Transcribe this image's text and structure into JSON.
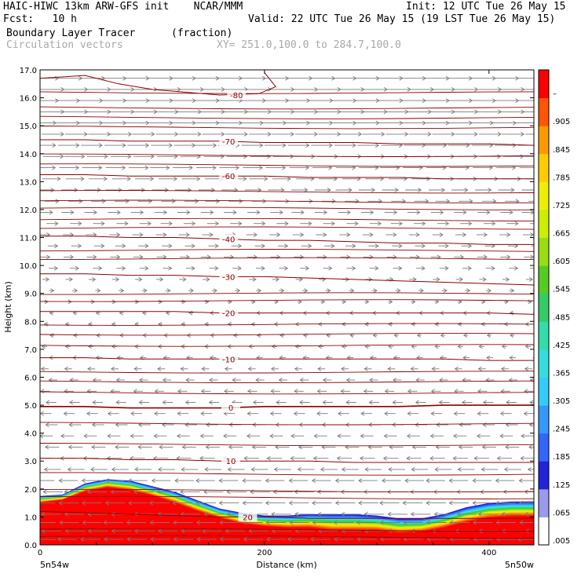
{
  "header": {
    "line1_left": "HAIC-HIWC 13km ARW-GFS init    NCAR/MMM",
    "line1_right": "Init: 12 UTC Tue 26 May 15",
    "line2_left": "Fcst:   10 h",
    "line2_right": "Valid: 22 UTC Tue 26 May 15 (19 LST Tue 26 May 15)",
    "line3_left": "Boundary Layer Tracer",
    "line3_unit": "(fraction)",
    "line4_left": "Circulation vectors",
    "line4_xy": "XY= 251.0,100.0 to 284.7,100.0"
  },
  "colors": {
    "contour": "#8b0000",
    "vector": "#7a7a7a",
    "tracer_scale": [
      "#ffffff",
      "#e8e8f8",
      "#2222dd",
      "#3366ff",
      "#33aaff",
      "#33ddee",
      "#33ddaa",
      "#33cc55",
      "#66dd22",
      "#bbee11",
      "#eeee00",
      "#ffcc00",
      "#ff9900",
      "#ff6600",
      "#ff3300",
      "#ff0000"
    ]
  },
  "chart_data": {
    "type": "heatmap",
    "title": "Boundary Layer Tracer",
    "units": "(fraction)",
    "xlabel": "Distance (km)",
    "ylabel": "Height (km)",
    "xlim": [
      0,
      440
    ],
    "ylim": [
      0.0,
      17.0
    ],
    "x_ticks": [
      {
        "value": 0,
        "label": "0"
      },
      {
        "value": 200,
        "label": "200"
      },
      {
        "value": 400,
        "label": "400"
      }
    ],
    "x_end_labels": {
      "left": "5n54w",
      "right": "5n50w"
    },
    "y_ticks": [
      {
        "value": 0.0,
        "label": "0.0"
      },
      {
        "value": 1.0,
        "label": "1.0"
      },
      {
        "value": 2.0,
        "label": "2.0"
      },
      {
        "value": 3.0,
        "label": "3.0"
      },
      {
        "value": 4.0,
        "label": "4.0"
      },
      {
        "value": 5.0,
        "label": "5.0"
      },
      {
        "value": 6.0,
        "label": "6.0"
      },
      {
        "value": 7.0,
        "label": "7.0"
      },
      {
        "value": 8.0,
        "label": "8.0"
      },
      {
        "value": 9.0,
        "label": "9.0"
      },
      {
        "value": 10.0,
        "label": "10.0"
      },
      {
        "value": 11.0,
        "label": "11.0"
      },
      {
        "value": 12.0,
        "label": "12.0"
      },
      {
        "value": 13.0,
        "label": "13.0"
      },
      {
        "value": 14.0,
        "label": "14.0"
      },
      {
        "value": 15.0,
        "label": "15.0"
      },
      {
        "value": 16.0,
        "label": "16.0"
      },
      {
        "value": 17.0,
        "label": "17.0"
      }
    ],
    "colorbar_labels": [
      ".005",
      ".065",
      ".125",
      ".185",
      ".245",
      ".305",
      ".365",
      ".425",
      ".485",
      ".545",
      ".605",
      ".665",
      ".725",
      ".785",
      ".845",
      ".905",
      "–"
    ],
    "tracer_top_profile": {
      "x": [
        0,
        20,
        40,
        60,
        80,
        100,
        120,
        140,
        160,
        180,
        200,
        220,
        240,
        260,
        280,
        300,
        320,
        340,
        360,
        380,
        400,
        420,
        440
      ],
      "top_km": [
        1.75,
        1.8,
        2.2,
        2.35,
        2.3,
        2.1,
        1.9,
        1.6,
        1.3,
        1.15,
        1.05,
        1.05,
        1.1,
        1.1,
        1.1,
        1.05,
        0.95,
        0.95,
        1.1,
        1.35,
        1.5,
        1.55,
        1.55
      ],
      "red_top_km": [
        1.5,
        1.6,
        1.9,
        2.05,
        1.95,
        1.75,
        1.5,
        1.2,
        0.95,
        0.75,
        0.65,
        0.6,
        0.6,
        0.5,
        0.5,
        0.5,
        0.4,
        0.45,
        0.6,
        0.8,
        0.95,
        1.0,
        1.0
      ]
    },
    "temperature_contours": [
      {
        "label": "20",
        "y_km": [
          1.2,
          1.15,
          1.1,
          1.05,
          1.0,
          1.0,
          0.95,
          0.95,
          0.95,
          0.95,
          0.95,
          0.95
        ],
        "label_x": 185
      },
      {
        "label": "10",
        "y_km": [
          3.1,
          3.1,
          3.05,
          3.05,
          3.0,
          3.0,
          3.0,
          2.95,
          2.95,
          2.95,
          2.95,
          2.95
        ],
        "label_x": 170
      },
      {
        "label": "0",
        "y_km": [
          4.95,
          4.95,
          4.9,
          4.9,
          4.9,
          4.95,
          4.95,
          4.95,
          4.95,
          5.0,
          5.0,
          5.0
        ],
        "label_x": 170
      },
      {
        "label": "-10",
        "y_km": [
          6.7,
          6.7,
          6.65,
          6.65,
          6.65,
          6.65,
          6.65,
          6.65,
          6.65,
          6.65,
          6.6,
          6.6
        ],
        "label_x": 168
      },
      {
        "label": "-20",
        "y_km": [
          8.35,
          8.35,
          8.35,
          8.35,
          8.3,
          8.3,
          8.3,
          8.3,
          8.3,
          8.3,
          8.3,
          8.25
        ],
        "label_x": 168
      },
      {
        "label": "-30",
        "y_km": [
          9.7,
          9.7,
          9.65,
          9.65,
          9.6,
          9.6,
          9.55,
          9.5,
          9.45,
          9.4,
          9.35,
          9.3
        ],
        "label_x": 168
      },
      {
        "label": "-40",
        "y_km": [
          11.05,
          11.05,
          11.0,
          11.0,
          10.95,
          10.9,
          10.9,
          10.85,
          10.8,
          10.8,
          10.75,
          10.75
        ],
        "label_x": 168
      },
      {
        "label": "-60",
        "y_km": [
          13.25,
          13.25,
          13.2,
          13.2,
          13.2,
          13.2,
          13.15,
          13.15,
          13.15,
          13.1,
          13.1,
          13.1
        ],
        "label_x": 168
      },
      {
        "label": "-70",
        "y_km": [
          14.5,
          14.5,
          14.45,
          14.45,
          14.45,
          14.4,
          14.4,
          14.4,
          14.35,
          14.35,
          14.35,
          14.3
        ],
        "label_x": 168
      },
      {
        "label": "-80",
        "y_km": [
          16.7,
          16.8,
          16.5,
          16.3,
          16.2,
          16.1,
          16.15,
          16.4,
          16.9
        ],
        "label_x": 175,
        "x": [
          0,
          40,
          70,
          100,
          130,
          160,
          195,
          210,
          200
        ]
      }
    ],
    "unlabeled_contours_km": [
      0.3,
      0.55,
      1.7,
      1.95,
      2.55,
      3.6,
      4.35,
      5.45,
      5.85,
      6.2,
      7.15,
      7.55,
      7.9,
      8.75,
      9.0,
      10.25,
      10.55,
      11.35,
      11.65,
      12.05,
      12.3,
      12.65,
      13.6,
      13.95,
      14.95,
      15.3,
      15.65,
      16.2
    ],
    "vector_rows_km": [
      0.2,
      0.5,
      0.8,
      1.1,
      1.5,
      1.9,
      2.3,
      2.7,
      3.1,
      3.5,
      3.9,
      4.3,
      4.7,
      5.1,
      5.5,
      5.9,
      6.3,
      6.7,
      7.1,
      7.5,
      7.9,
      8.3,
      8.7,
      9.1,
      9.5,
      9.9,
      10.3,
      10.7,
      11.1,
      11.5,
      11.9,
      12.3,
      12.7,
      13.1,
      13.5,
      13.9,
      14.3,
      14.7,
      15.1,
      15.5,
      15.9,
      16.3,
      16.7
    ],
    "vector_u_by_height": {
      "km": [
        0.0,
        2.0,
        3.0,
        4.0,
        6.0,
        8.0,
        9.0,
        10.0,
        11.0,
        12.0,
        13.0,
        14.0,
        15.0,
        16.0,
        17.0
      ],
      "u": [
        -0.9,
        -0.9,
        -0.7,
        -0.6,
        -0.4,
        -0.1,
        0.2,
        0.45,
        0.5,
        0.6,
        0.8,
        1.0,
        1.25,
        1.4,
        1.5
      ]
    }
  }
}
